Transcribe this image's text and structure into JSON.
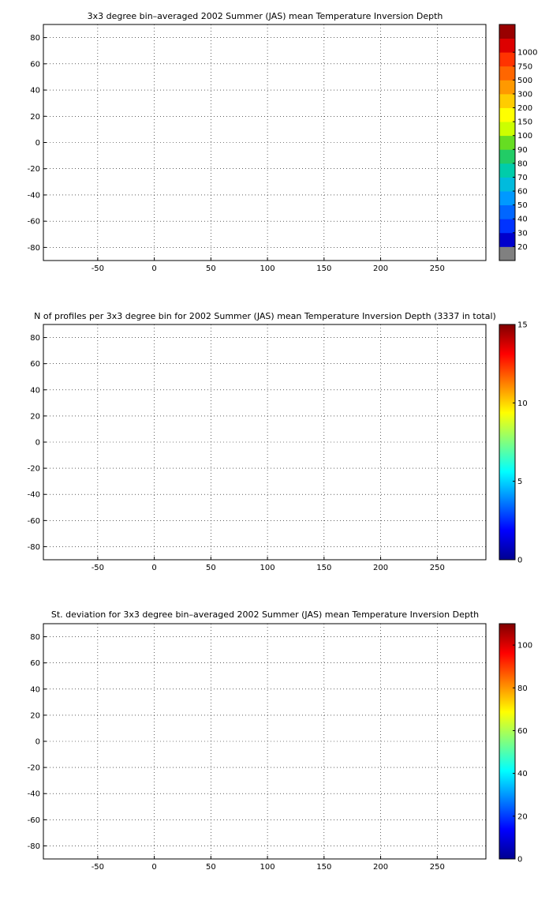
{
  "chart_data": [
    {
      "type": "heatmap",
      "title": "3x3 degree bin–averaged 2002 Summer (JAS) mean Temperature Inversion Depth",
      "xlabel": "",
      "ylabel": "",
      "xlim": [
        -98,
        293
      ],
      "ylim": [
        -90,
        90
      ],
      "xticks": [
        "-50",
        "0",
        "50",
        "100",
        "150",
        "200",
        "250"
      ],
      "yticks": [
        "80",
        "60",
        "40",
        "20",
        "0",
        "-20",
        "-40",
        "-60",
        "-80"
      ],
      "grid": true,
      "colorbar": {
        "labels": [
          "20",
          "30",
          "40",
          "50",
          "60",
          "70",
          "80",
          "90",
          "100",
          "150",
          "200",
          "300",
          "500",
          "750",
          "1000"
        ],
        "colors": [
          "#808080",
          "#0000cc",
          "#0033ff",
          "#0066ff",
          "#0099ff",
          "#00bbdd",
          "#00ccaa",
          "#22cc66",
          "#66dd22",
          "#ccff00",
          "#ffff00",
          "#ffcc00",
          "#ff9900",
          "#ff6600",
          "#ff3300",
          "#dd0000",
          "#990000"
        ]
      }
    },
    {
      "type": "heatmap",
      "title": "N of profiles per 3x3 degree bin for 2002 Summer (JAS) mean Temperature Inversion Depth  (3337 in total)",
      "xlabel": "",
      "ylabel": "",
      "xlim": [
        -98,
        293
      ],
      "ylim": [
        -90,
        90
      ],
      "xticks": [
        "-50",
        "0",
        "50",
        "100",
        "150",
        "200",
        "250"
      ],
      "yticks": [
        "80",
        "60",
        "40",
        "20",
        "0",
        "-20",
        "-40",
        "-60",
        "-80"
      ],
      "grid": true,
      "colorbar": {
        "labels": [
          "0",
          "5",
          "10",
          "15"
        ],
        "min": 0,
        "max": 15
      }
    },
    {
      "type": "heatmap",
      "title": "St. deviation for 3x3 degree bin–averaged 2002 Summer (JAS) mean Temperature Inversion Depth",
      "xlabel": "",
      "ylabel": "",
      "xlim": [
        -98,
        293
      ],
      "ylim": [
        -90,
        90
      ],
      "xticks": [
        "-50",
        "0",
        "50",
        "100",
        "150",
        "200",
        "250"
      ],
      "yticks": [
        "80",
        "60",
        "40",
        "20",
        "0",
        "-20",
        "-40",
        "-60",
        "-80"
      ],
      "grid": true,
      "colorbar": {
        "labels": [
          "0",
          "20",
          "40",
          "60",
          "80",
          "100"
        ],
        "min": 0,
        "max": 110
      }
    }
  ]
}
